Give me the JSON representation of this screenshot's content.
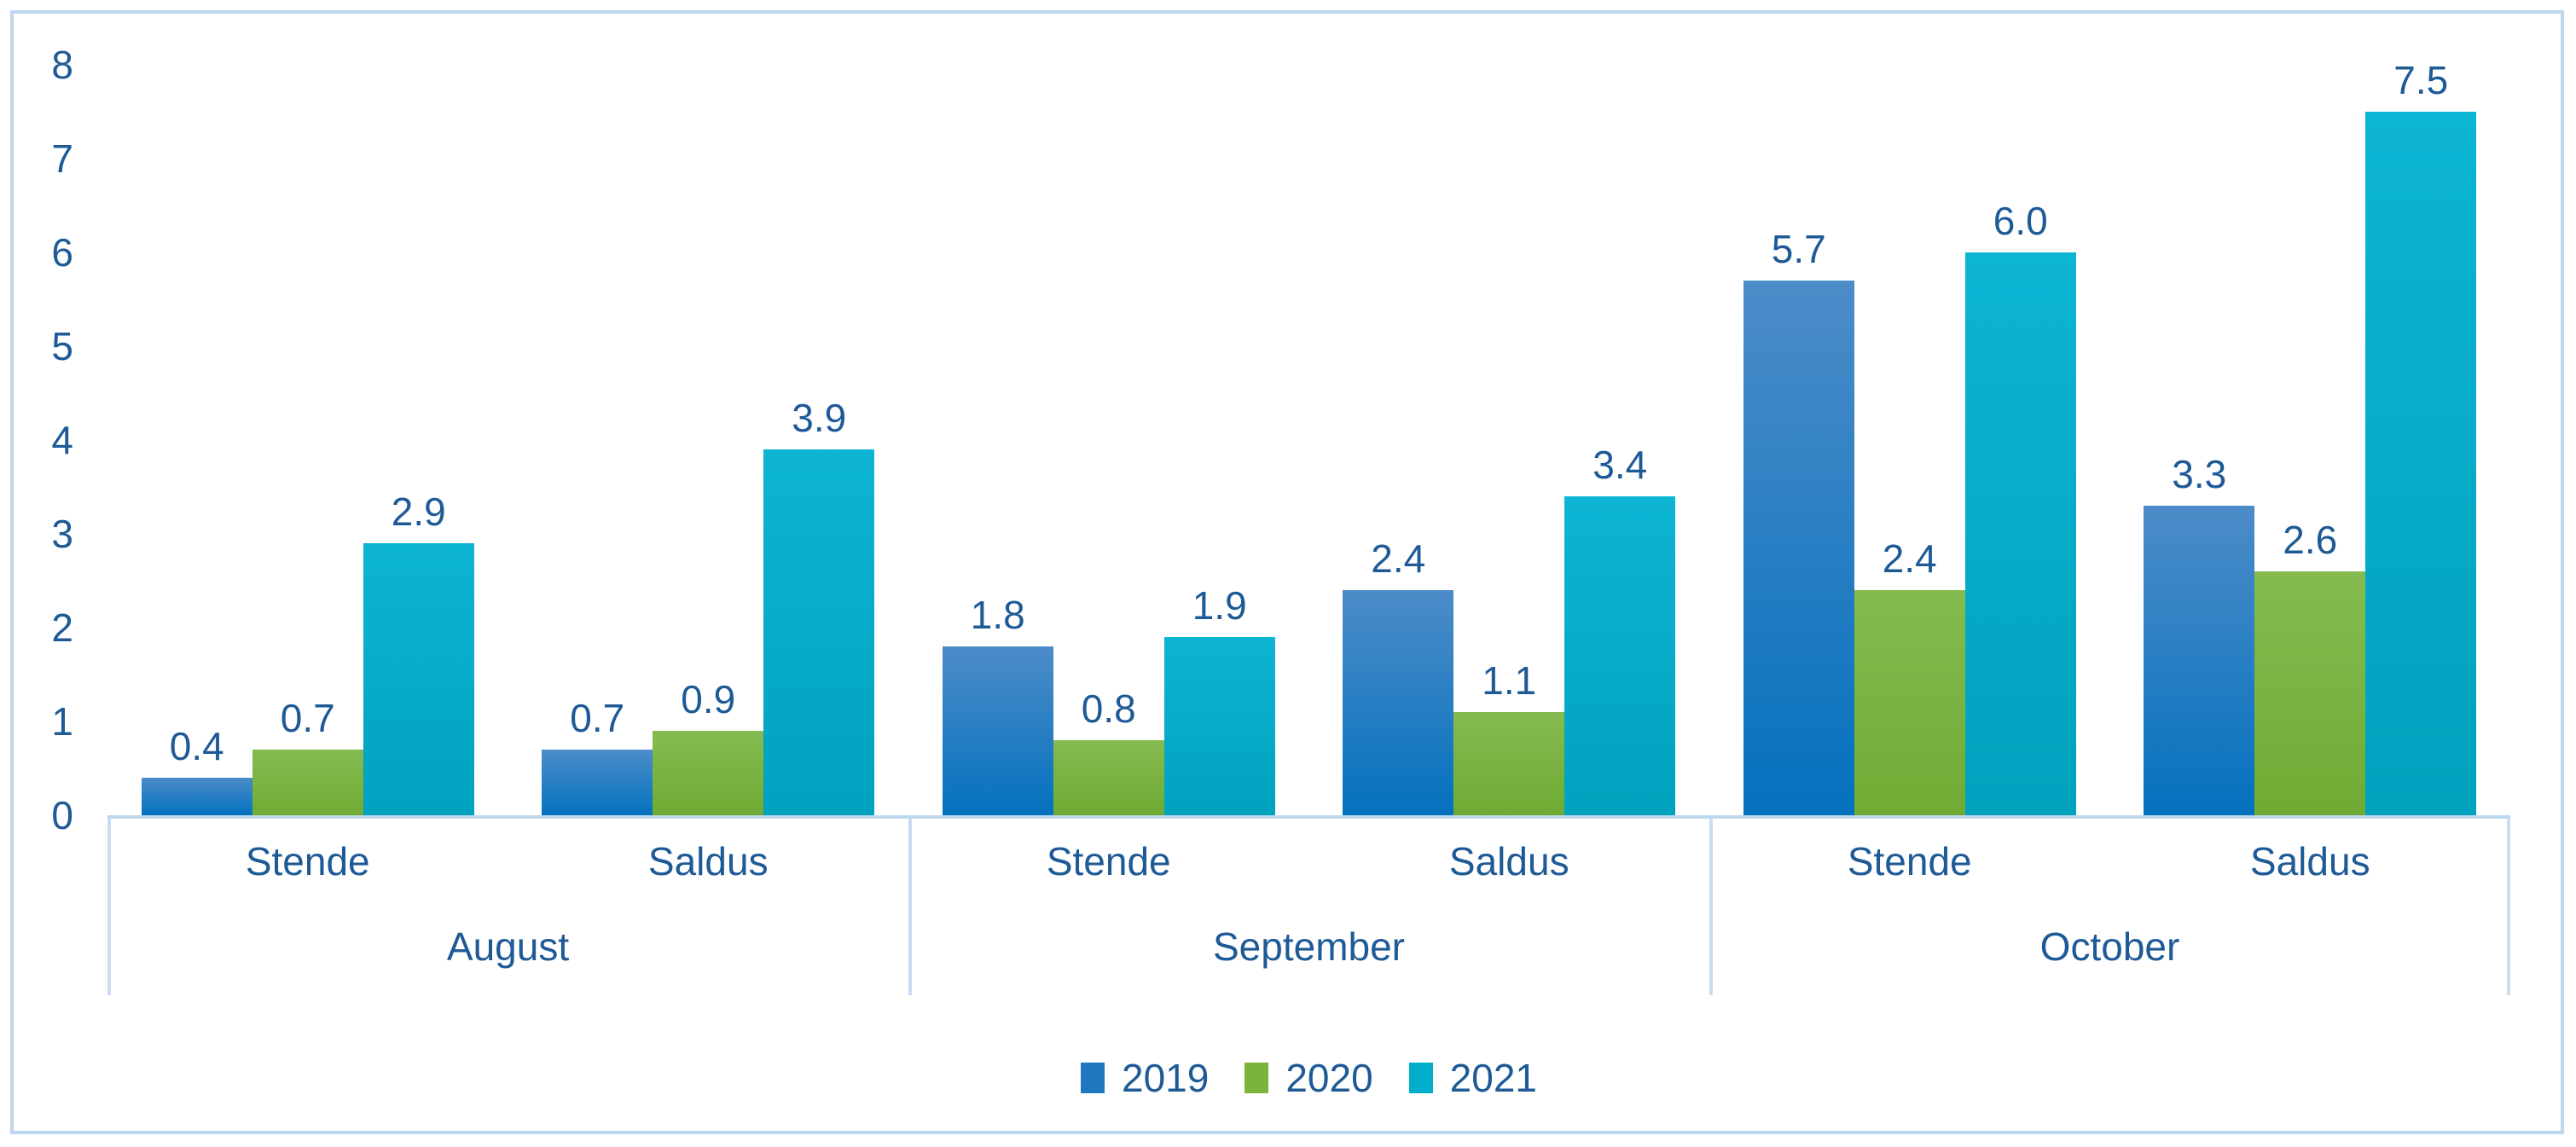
{
  "chart_data": {
    "type": "bar",
    "title": "",
    "xlabel": "",
    "ylabel": "",
    "grid": false,
    "legend_position": "bottom",
    "y_axis": {
      "min": 0,
      "max": 8,
      "step": 1,
      "ticks": [
        "0",
        "1",
        "2",
        "3",
        "4",
        "5",
        "6",
        "7",
        "8"
      ]
    },
    "group_labels": [
      "August",
      "September",
      "October"
    ],
    "subgroup_labels": [
      "Stende",
      "Saldus"
    ],
    "categories": [
      {
        "month": "August",
        "city": "Stende"
      },
      {
        "month": "August",
        "city": "Saldus"
      },
      {
        "month": "September",
        "city": "Stende"
      },
      {
        "month": "September",
        "city": "Saldus"
      },
      {
        "month": "October",
        "city": "Stende"
      },
      {
        "month": "October",
        "city": "Saldus"
      }
    ],
    "series": [
      {
        "name": "2019",
        "values": [
          0.4,
          0.7,
          1.8,
          2.4,
          5.7,
          3.3
        ],
        "labels": [
          "0.4",
          "0.7",
          "1.8",
          "2.4",
          "5.7",
          "3.3"
        ],
        "color_top": "#4C8CC8",
        "color_bottom": "#0471BE",
        "legend_color": "#2077BE"
      },
      {
        "name": "2020",
        "values": [
          0.7,
          0.9,
          0.8,
          1.1,
          2.4,
          2.6
        ],
        "labels": [
          "0.7",
          "0.9",
          "0.8",
          "1.1",
          "2.4",
          "2.6"
        ],
        "color_top": "#85BB50",
        "color_bottom": "#6FAB34",
        "legend_color": "#7AB33E",
        "note": ""
      },
      {
        "name": "2021",
        "values": [
          2.9,
          3.9,
          1.9,
          3.4,
          6.0,
          7.5
        ],
        "labels": [
          "2.9",
          "3.9",
          "1.9",
          "3.4",
          "6.0",
          "7.5"
        ],
        "color_top": "#0CB5D3",
        "color_bottom": "#00A2BE",
        "legend_color": "#00ADCB"
      }
    ],
    "legend": [
      "2019",
      "2020",
      "2021"
    ],
    "colors": {
      "text": "#1E5A96",
      "axis_line": "#BDD7EE",
      "divider_line": "#C9DDF2",
      "frame_border": "#BDD7EE",
      "background": "#FFFFFF"
    }
  }
}
